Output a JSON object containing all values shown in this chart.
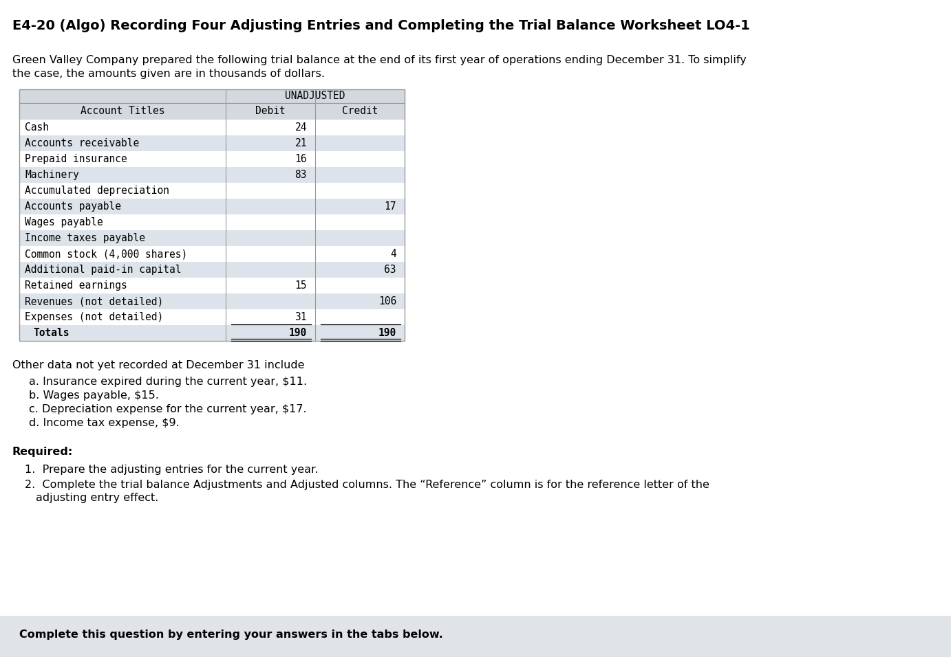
{
  "title": "E4-20 (Algo) Recording Four Adjusting Entries and Completing the Trial Balance Worksheet LO4-1",
  "intro_line1": "Green Valley Company prepared the following trial balance at the end of its first year of operations ending December 31. To simplify",
  "intro_line2": "the case, the amounts given are in thousands of dollars.",
  "table_header_top": "UNADJUSTED",
  "table_headers": [
    "Account Titles",
    "Debit",
    "Credit"
  ],
  "table_rows": [
    {
      "account": "Cash",
      "debit": "24",
      "credit": "",
      "shade": false
    },
    {
      "account": "Accounts receivable",
      "debit": "21",
      "credit": "",
      "shade": true
    },
    {
      "account": "Prepaid insurance",
      "debit": "16",
      "credit": "",
      "shade": false
    },
    {
      "account": "Machinery",
      "debit": "83",
      "credit": "",
      "shade": true
    },
    {
      "account": "Accumulated depreciation",
      "debit": "",
      "credit": "",
      "shade": false
    },
    {
      "account": "Accounts payable",
      "debit": "",
      "credit": "17",
      "shade": true
    },
    {
      "account": "Wages payable",
      "debit": "",
      "credit": "",
      "shade": false
    },
    {
      "account": "Income taxes payable",
      "debit": "",
      "credit": "",
      "shade": true
    },
    {
      "account": "Common stock (4,000 shares)",
      "debit": "",
      "credit": "4",
      "shade": false
    },
    {
      "account": "Additional paid-in capital",
      "debit": "",
      "credit": "63",
      "shade": true
    },
    {
      "account": "Retained earnings",
      "debit": "15",
      "credit": "",
      "shade": false
    },
    {
      "account": "Revenues (not detailed)",
      "debit": "",
      "credit": "106",
      "shade": true
    },
    {
      "account": "Expenses (not detailed)",
      "debit": "31",
      "credit": "",
      "shade": false
    },
    {
      "account": "Totals",
      "debit": "190",
      "credit": "190",
      "shade": true
    }
  ],
  "other_data_heading": "Other data not yet recorded at December 31 include",
  "other_data_items": [
    "a. Insurance expired during the current year, $11.",
    "b. Wages payable, $15.",
    "c. Depreciation expense for the current year, $17.",
    "d. Income tax expense, $9."
  ],
  "required_heading": "Required:",
  "req1": "1.  Prepare the adjusting entries for the current year.",
  "req2a": "2.  Complete the trial balance Adjustments and Adjusted columns. The “Reference” column is for the reference letter of the",
  "req2b": "    adjusting entry effect.",
  "footer_text": "Complete this question by entering your answers in the tabs below.",
  "bg_color": "#ffffff",
  "table_shade_color": "#dde3ea",
  "table_border_color": "#999999",
  "header_shade_color": "#d4d9e0",
  "footer_bg_color": "#e0e3e8",
  "title_fontsize": 14,
  "body_fontsize": 11.5,
  "table_fontsize": 10.5,
  "mono_font": "DejaVu Sans Mono",
  "sans_font": "DejaVu Sans"
}
